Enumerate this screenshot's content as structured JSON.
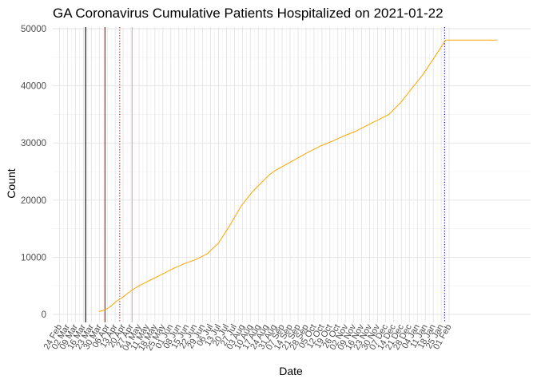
{
  "chart_data": {
    "type": "line",
    "title": "GA Coronavirus Cumulative Patients Hospitalized on 2021-01-22",
    "xlabel": "Date",
    "ylabel": "Count",
    "ylim": [
      0,
      50000
    ],
    "y_ticks": [
      0,
      10000,
      20000,
      30000,
      40000,
      50000
    ],
    "x_start": "2020-02-24",
    "x_end": "2021-02-01",
    "x_tick_labels": [
      "24 Feb",
      "02 Mar",
      "09 Mar",
      "16 Mar",
      "23 Mar",
      "30 Mar",
      "06 Apr",
      "13 Apr",
      "20 Apr",
      "27 Apr",
      "04 May",
      "11 May",
      "18 May",
      "25 May",
      "01 Jun",
      "08 Jun",
      "15 Jun",
      "22 Jun",
      "29 Jun",
      "06 Jul",
      "13 Jul",
      "20 Jul",
      "27 Jul",
      "03 Aug",
      "10 Aug",
      "17 Aug",
      "24 Aug",
      "31 Aug",
      "07 Sep",
      "14 Sep",
      "21 Sep",
      "28 Sep",
      "05 Oct",
      "12 Oct",
      "19 Oct",
      "26 Oct",
      "02 Nov",
      "09 Nov",
      "16 Nov",
      "23 Nov",
      "30 Nov",
      "07 Dec",
      "14 Dec",
      "21 Dec",
      "28 Dec",
      "04 Jan",
      "11 Jan",
      "18 Jan",
      "25 Jan",
      "01 Feb"
    ],
    "grid": true,
    "series": [
      {
        "name": "Cumulative patients hospitalized",
        "color": "#FFA500",
        "x_days": [
          35,
          40,
          45,
          50,
          55,
          60,
          65,
          70,
          75,
          80,
          90,
          100,
          110,
          120,
          130,
          140,
          150,
          160,
          170,
          175,
          180,
          185,
          190,
          200,
          210,
          220,
          230,
          240,
          250,
          260,
          270,
          280,
          290,
          300,
          310,
          320,
          330,
          340,
          350,
          360,
          370,
          380,
          385
        ],
        "values": [
          500,
          800,
          1400,
          2300,
          2900,
          3700,
          4400,
          5000,
          5500,
          6000,
          7000,
          8000,
          8900,
          9600,
          10600,
          12500,
          15600,
          19000,
          21500,
          22500,
          23500,
          24500,
          25200,
          26300,
          27400,
          28500,
          29500,
          30300,
          31200,
          32000,
          33000,
          34000,
          35000,
          37000,
          39500,
          42000,
          45000,
          48000,
          48000,
          48000,
          48000,
          48000,
          48000
        ]
      }
    ],
    "vlines": [
      {
        "x_day": 23,
        "color": "#000000",
        "style": "solid"
      },
      {
        "x_day": 40,
        "color": "#CC0000",
        "style": "solid"
      },
      {
        "x_day": 53,
        "color": "#CC0000",
        "style": "dotted"
      },
      {
        "x_day": 64,
        "color": "#F4A6B0",
        "style": "solid"
      },
      {
        "x_day": 339,
        "color": "#0000CC",
        "style": "dotted"
      }
    ]
  }
}
